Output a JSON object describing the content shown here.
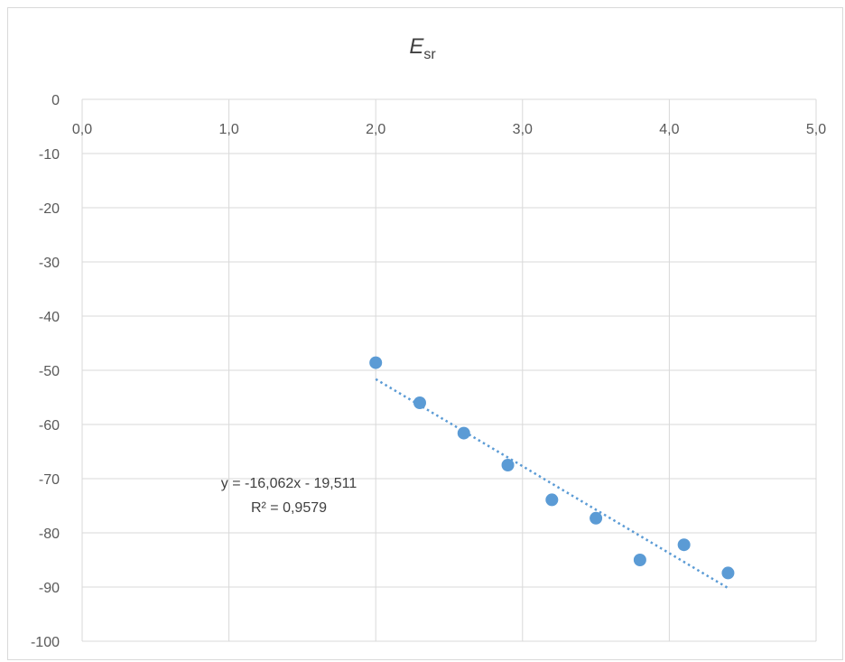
{
  "chart_data": {
    "type": "scatter",
    "title": "E",
    "title_subscript": "sr",
    "xlabel": "",
    "ylabel": "",
    "xlim": [
      0,
      5
    ],
    "ylim": [
      -100,
      0
    ],
    "x_ticks": [
      "0,0",
      "1,0",
      "2,0",
      "3,0",
      "4,0",
      "5,0"
    ],
    "x_tick_values": [
      0,
      1,
      2,
      3,
      4,
      5
    ],
    "y_ticks": [
      "0",
      "-10",
      "-20",
      "-30",
      "-40",
      "-50",
      "-60",
      "-70",
      "-80",
      "-90",
      "-100"
    ],
    "y_tick_values": [
      0,
      -10,
      -20,
      -30,
      -40,
      -50,
      -60,
      -70,
      -80,
      -90,
      -100
    ],
    "x_axis_position": "top",
    "grid": true,
    "legend": "none",
    "series": [
      {
        "x": [
          2.0,
          2.3,
          2.6,
          2.9,
          3.2,
          3.5,
          3.8,
          4.1,
          4.4
        ],
        "y": [
          -48.6,
          -56.0,
          -61.6,
          -67.5,
          -73.9,
          -77.3,
          -85.0,
          -82.2,
          -87.4
        ],
        "color": "#5b9bd5"
      }
    ],
    "trendline": {
      "type": "linear",
      "slope": -16.062,
      "intercept": -19.511,
      "x_range": [
        2.0,
        4.4
      ],
      "color": "#5b9bd5",
      "style": "dotted",
      "equation_label": "y = -16,062x - 19,511",
      "r2_label": "R² = 0,9579"
    },
    "colors": {
      "grid": "#d9d9d9",
      "text": "#595959",
      "frame": "#d9d9d9"
    }
  }
}
